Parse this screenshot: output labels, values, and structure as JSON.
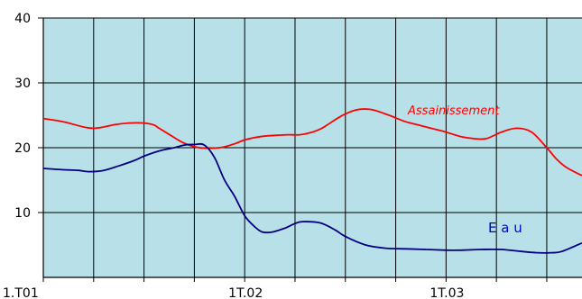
{
  "chart_data": {
    "type": "line",
    "title": "",
    "xlabel": "",
    "ylabel": "",
    "x_tick_labels": [
      "1.T01",
      "1T.02",
      "1T.03"
    ],
    "x_tick_positions": [
      0,
      4,
      8
    ],
    "xlim": [
      0,
      10.7
    ],
    "ylim": [
      0,
      40
    ],
    "y_ticks": [
      10,
      20,
      30,
      40
    ],
    "grid": true,
    "plot_background": "#b8e0e8",
    "series": [
      {
        "name": "Assainissement",
        "color": "#ff0000",
        "x": [
          0,
          0.4,
          0.8,
          1.0,
          1.2,
          1.45,
          1.7,
          2.0,
          2.2,
          2.3,
          2.55,
          2.8,
          3.1,
          3.5,
          3.8,
          4.0,
          4.3,
          4.6,
          4.85,
          5.1,
          5.3,
          5.45,
          5.6,
          5.9,
          6.2,
          6.5,
          6.8,
          7.0,
          7.2,
          7.5,
          7.8,
          8.0,
          8.3,
          8.55,
          8.8,
          9.1,
          9.4,
          9.7,
          10.0,
          10.2,
          10.4,
          10.7
        ],
        "y": [
          24.5,
          24,
          23.2,
          23,
          23.2,
          23.6,
          23.8,
          23.8,
          23.5,
          23.0,
          21.8,
          20.7,
          20.0,
          20.0,
          20.6,
          21.2,
          21.7,
          21.9,
          22.0,
          22.0,
          22.3,
          22.7,
          23.3,
          24.8,
          25.8,
          25.9,
          25.2,
          24.6,
          24.0,
          23.4,
          22.8,
          22.4,
          21.7,
          21.4,
          21.4,
          22.4,
          23.0,
          22.4,
          20.0,
          18.2,
          16.9,
          15.7
        ]
      },
      {
        "name": "Eau",
        "color": "#000080",
        "x": [
          0,
          0.4,
          0.7,
          0.9,
          1.2,
          1.5,
          1.8,
          2.0,
          2.3,
          2.6,
          2.8,
          3.0,
          3.2,
          3.4,
          3.6,
          3.8,
          4.0,
          4.2,
          4.35,
          4.55,
          4.8,
          5.0,
          5.15,
          5.5,
          5.8,
          6.0,
          6.4,
          6.8,
          7.2,
          7.6,
          8.0,
          8.3,
          8.7,
          9.1,
          9.5,
          9.8,
          10.1,
          10.3,
          10.7
        ],
        "y": [
          16.8,
          16.6,
          16.5,
          16.3,
          16.5,
          17.2,
          18.0,
          18.7,
          19.5,
          20.0,
          20.4,
          20.5,
          20.4,
          18.5,
          15.0,
          12.5,
          9.5,
          7.8,
          7.0,
          7.0,
          7.6,
          8.3,
          8.6,
          8.4,
          7.3,
          6.3,
          5.0,
          4.5,
          4.4,
          4.3,
          4.2,
          4.2,
          4.3,
          4.3,
          4.0,
          3.8,
          3.8,
          4.0,
          5.3
        ]
      }
    ]
  }
}
